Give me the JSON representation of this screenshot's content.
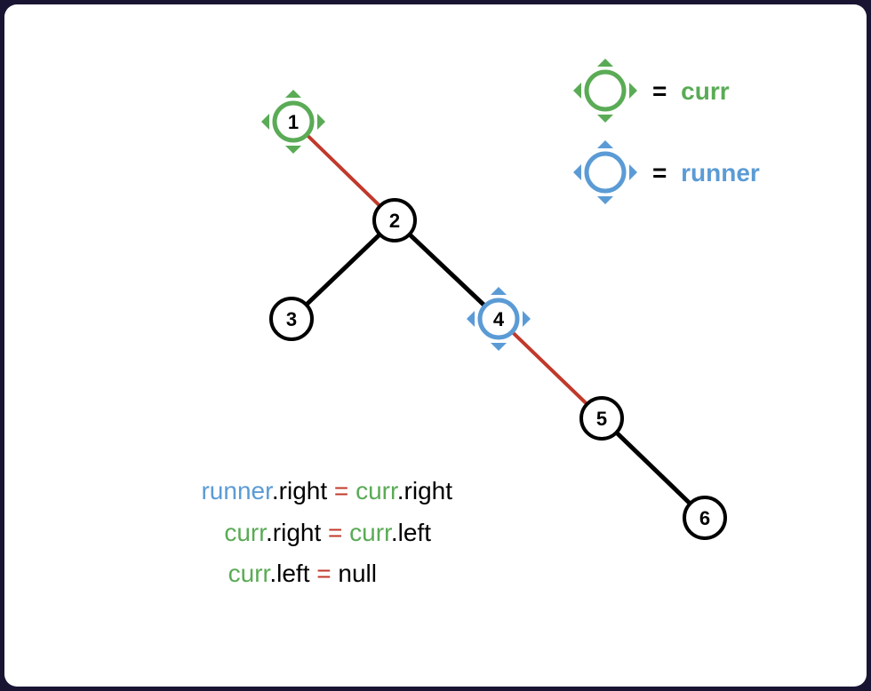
{
  "colors": {
    "curr": "#5aab56",
    "runner": "#5b9bd5",
    "moved_edge": "#c0392b",
    "edge": "#000000"
  },
  "nodes": [
    {
      "id": "n1",
      "label": "1",
      "marker": "curr"
    },
    {
      "id": "n2",
      "label": "2"
    },
    {
      "id": "n3",
      "label": "3"
    },
    {
      "id": "n4",
      "label": "4",
      "marker": "runner"
    },
    {
      "id": "n5",
      "label": "5"
    },
    {
      "id": "n6",
      "label": "6"
    }
  ],
  "edges": [
    {
      "from": "1",
      "to": "2",
      "style": "red"
    },
    {
      "from": "2",
      "to": "3",
      "style": "black"
    },
    {
      "from": "2",
      "to": "4",
      "style": "black"
    },
    {
      "from": "4",
      "to": "5",
      "style": "red"
    },
    {
      "from": "5",
      "to": "6",
      "style": "black"
    }
  ],
  "legend": {
    "equals": "=",
    "curr_label": "curr",
    "runner_label": "runner"
  },
  "code": {
    "line1": {
      "a": "runner",
      "b": ".right",
      "eq": " = ",
      "c": "curr",
      "d": ".right"
    },
    "line2": {
      "a": "curr",
      "b": ".right",
      "eq": " = ",
      "c": "curr",
      "d": ".left"
    },
    "line3": {
      "a": "curr",
      "b": ".left",
      "eq": " = ",
      "c": "null"
    }
  }
}
